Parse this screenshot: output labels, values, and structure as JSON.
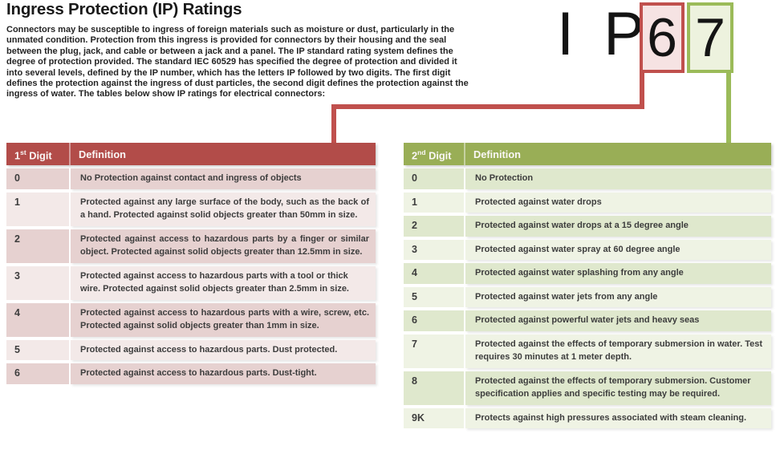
{
  "page": {
    "title": "Ingress Protection (IP) Ratings",
    "intro_lines": [
      "Connectors may be susceptible to ingress of foreign materials such as moisture or dust, particularly in the",
      "unmated condition. Protection from this ingress is provided for connectors by their housing and the seal",
      "between the plug, jack, and cable or between a jack and a panel. The IP standard rating system defines the",
      "degree of protection provided. The standard IEC 60529 has specified the degree of protection and divided it",
      "into several levels, defined by the IP number, which has the letters IP followed by two digits. The first digit",
      "defines the protection against the ingress of dust particles, the second digit defines the protection against the",
      "ingress of water. The tables below show IP ratings for electrical connectors:"
    ]
  },
  "ip_graphic": {
    "prefix": "I P",
    "first_digit": "6",
    "second_digit": "7"
  },
  "colors": {
    "red_accent": "#c0504d",
    "red_header": "#b24c49",
    "red_row_dark": "#e6d1d0",
    "red_row_light": "#f3e9e8",
    "red_box_fill": "#f6e3e3",
    "green_accent": "#9bbb59",
    "green_header": "#99ae56",
    "green_row_dark": "#dfe8cd",
    "green_row_light": "#eff3e4",
    "green_box_fill": "#edf2de",
    "header_text": "#faf7f6",
    "cell_text": "#3d3d3d",
    "title_text": "#1a1a1a",
    "intro_text": "#242424"
  },
  "first_digit_table": {
    "header": {
      "digit_num": "1",
      "digit_sup": "st",
      "digit_word": " Digit",
      "definition": "Definition"
    },
    "rows": [
      {
        "digit": "0",
        "definition": "No Protection against contact and ingress of objects"
      },
      {
        "digit": "1",
        "definition": "Protected against any large surface of the body, such as the back of a hand. Protected against solid objects greater than 50mm in size."
      },
      {
        "digit": "2",
        "definition": "Protected against access to hazardous parts by a finger or similar object. Protected against solid objects greater than 12.5mm in size."
      },
      {
        "digit": "3",
        "definition": "Protected against access to hazardous parts with a tool or thick wire. Protected against solid objects greater than 2.5mm in size."
      },
      {
        "digit": "4",
        "definition": "Protected against access to hazardous parts with a wire, screw, etc. Protected against solid objects greater than 1mm in size."
      },
      {
        "digit": "5",
        "definition": "Protected against access to hazardous parts. Dust protected."
      },
      {
        "digit": "6",
        "definition": "Protected against access to hazardous parts. Dust-tight."
      }
    ]
  },
  "second_digit_table": {
    "header": {
      "digit_num": "2",
      "digit_sup": "nd",
      "digit_word": " Digit",
      "definition": "Definition"
    },
    "rows": [
      {
        "digit": "0",
        "definition": "No Protection"
      },
      {
        "digit": "1",
        "definition": "Protected against water drops"
      },
      {
        "digit": "2",
        "definition": "Protected against water drops at a 15 degree angle"
      },
      {
        "digit": "3",
        "definition": "Protected against water spray at 60 degree angle"
      },
      {
        "digit": "4",
        "definition": "Protected against water splashing from any angle"
      },
      {
        "digit": "5",
        "definition": "Protected against water jets from any angle"
      },
      {
        "digit": "6",
        "definition": "Protected against powerful water jets and heavy seas"
      },
      {
        "digit": "7",
        "definition": "Protected against the effects of temporary submersion in water. Test requires 30 minutes at 1 meter depth."
      },
      {
        "digit": "8",
        "definition": "Protected against the effects of temporary submersion. Customer specification applies and specific testing may be required."
      },
      {
        "digit": "9K",
        "definition": "Protects against high pressures associated with steam cleaning."
      }
    ]
  }
}
